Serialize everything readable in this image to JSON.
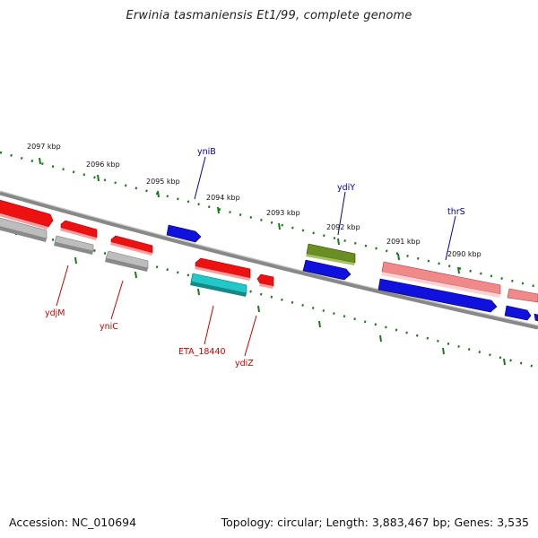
{
  "title": "Erwinia tasmaniensis Et1/99, complete genome",
  "footer": {
    "accession": "Accession: NC_010694",
    "summary": "Topology: circular; Length: 3,883,467 bp; Genes: 3,535"
  },
  "ticks": [
    "2097 kbp",
    "2096 kbp",
    "2095 kbp",
    "2094 kbp",
    "2093 kbp",
    "2092 kbp",
    "2091 kbp",
    "2090 kbp"
  ],
  "gene_labels": {
    "yniB": "yniB",
    "ydiY": "ydiY",
    "thrS": "thrS",
    "ydjM": "ydjM",
    "yniC": "yniC",
    "ETA_18440": "ETA_18440",
    "ydiZ": "ydiZ"
  },
  "colors": {
    "backbone": "#777777",
    "tick": "#1a7a1a",
    "tick_label": "#111111",
    "red": "#ee1111",
    "grey": "#bdbdbd",
    "blue": "#1111dd",
    "cyan": "#22c8c8",
    "olive": "#6b8e23",
    "pink": "#f08a8a",
    "label_red": "#cc0000",
    "label_blue": "#0000aa"
  }
}
